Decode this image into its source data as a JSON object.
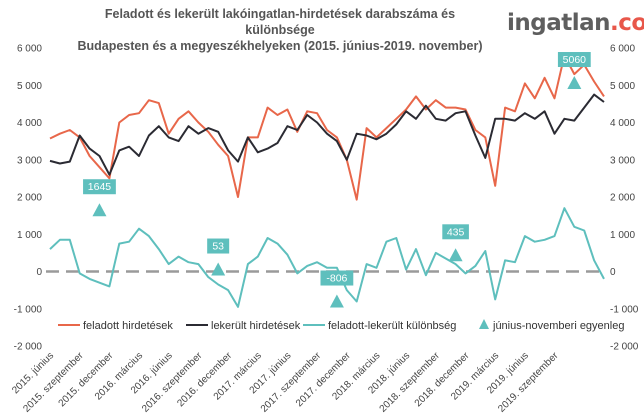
{
  "title_line1": "Feladott és lekerült lakóingatlan-hirdetések darabszáma és különbsége",
  "title_line2": "Budapesten és a megyeszékhelyeken (2015. június-2019. november)",
  "logo": {
    "part1": "ingatlan",
    "part2": ".com"
  },
  "colors": {
    "feladott": "#e8674a",
    "lekerult": "#2b2b33",
    "kulonbseg": "#5ebfbd",
    "marker": "#5ebfbd",
    "zero_line": "#9a9a9a",
    "callout": "#5ebfbd"
  },
  "chart_data": {
    "type": "line",
    "ylim": [
      -2000,
      6000
    ],
    "yticks": [
      "6 000",
      "5 000",
      "4 000",
      "3 000",
      "2 000",
      "1 000",
      "0",
      "-1 000",
      "-2 000"
    ],
    "y_tick_values": [
      6000,
      5000,
      4000,
      3000,
      2000,
      1000,
      0,
      -1000,
      -2000
    ],
    "x_labels": [
      {
        "index": 0,
        "text": "2015. június"
      },
      {
        "index": 3,
        "text": "2015. szeptember"
      },
      {
        "index": 6,
        "text": "2015. december"
      },
      {
        "index": 9,
        "text": "2016. március"
      },
      {
        "index": 12,
        "text": "2016. június"
      },
      {
        "index": 15,
        "text": "2016. szeptember"
      },
      {
        "index": 18,
        "text": "2016. december"
      },
      {
        "index": 21,
        "text": "2017. március"
      },
      {
        "index": 24,
        "text": "2017. június"
      },
      {
        "index": 27,
        "text": "2017. szeptember"
      },
      {
        "index": 30,
        "text": "2017. december"
      },
      {
        "index": 33,
        "text": "2018. március"
      },
      {
        "index": 36,
        "text": "2018. június"
      },
      {
        "index": 39,
        "text": "2018. szeptember"
      },
      {
        "index": 42,
        "text": "2018. december"
      },
      {
        "index": 45,
        "text": "2019. március"
      },
      {
        "index": 48,
        "text": "2019. június"
      },
      {
        "index": 51,
        "text": "2019. szeptember"
      }
    ],
    "series": [
      {
        "name": "feladott hirdetések",
        "key": "feladott",
        "values": [
          3570,
          3700,
          3800,
          3600,
          3100,
          2800,
          2500,
          4000,
          4200,
          4250,
          4600,
          4520,
          3700,
          4100,
          4300,
          4000,
          3750,
          3400,
          3100,
          2000,
          3600,
          3600,
          4400,
          4200,
          4350,
          3750,
          4300,
          4250,
          3800,
          3600,
          3000,
          1930,
          3850,
          3600,
          3850,
          4100,
          4350,
          4700,
          4350,
          4600,
          4400,
          4400,
          4350,
          3800,
          3600,
          2300,
          4400,
          4300,
          5050,
          4650,
          5200,
          4650,
          5800,
          5300,
          5550,
          5100,
          4700
        ]
      },
      {
        "name": "lekerült hirdetések",
        "key": "lekerult",
        "values": [
          2970,
          2900,
          2950,
          3650,
          3300,
          3100,
          2600,
          3250,
          3350,
          3100,
          3650,
          3900,
          3600,
          3500,
          3900,
          3700,
          3850,
          3750,
          3250,
          2950,
          3600,
          3200,
          3300,
          3450,
          3900,
          3800,
          4200,
          4000,
          3700,
          3500,
          3000,
          3700,
          3650,
          3550,
          3700,
          3950,
          4300,
          4100,
          4450,
          4100,
          4050,
          4250,
          4300,
          3650,
          3050,
          4100,
          4100,
          4050,
          4250,
          4100,
          4300,
          3700,
          4100,
          4050,
          4400,
          4750,
          4550
        ]
      },
      {
        "name": "feladott-lekerült különbség",
        "key": "kulonbseg",
        "values": [
          600,
          850,
          850,
          -50,
          -200,
          -300,
          -400,
          750,
          800,
          1150,
          950,
          600,
          200,
          400,
          250,
          200,
          -150,
          -350,
          -500,
          -950,
          200,
          400,
          900,
          750,
          450,
          -50,
          150,
          250,
          100,
          100,
          -500,
          -806,
          200,
          100,
          800,
          900,
          50,
          600,
          -100,
          500,
          350,
          200,
          -50,
          150,
          550,
          -750,
          300,
          250,
          950,
          800,
          850,
          950,
          1700,
          1200,
          1100,
          300,
          -200
        ]
      }
    ],
    "markers": {
      "name": "június-novemberi egyenleg",
      "points": [
        {
          "index": 5,
          "value": 1645,
          "label": "1645"
        },
        {
          "index": 17,
          "value": 53,
          "label": "53"
        },
        {
          "index": 29,
          "value": -806,
          "label": "-806"
        },
        {
          "index": 41,
          "value": 435,
          "label": "435"
        },
        {
          "index": 53,
          "value": 5060,
          "label": "5060"
        }
      ]
    }
  }
}
